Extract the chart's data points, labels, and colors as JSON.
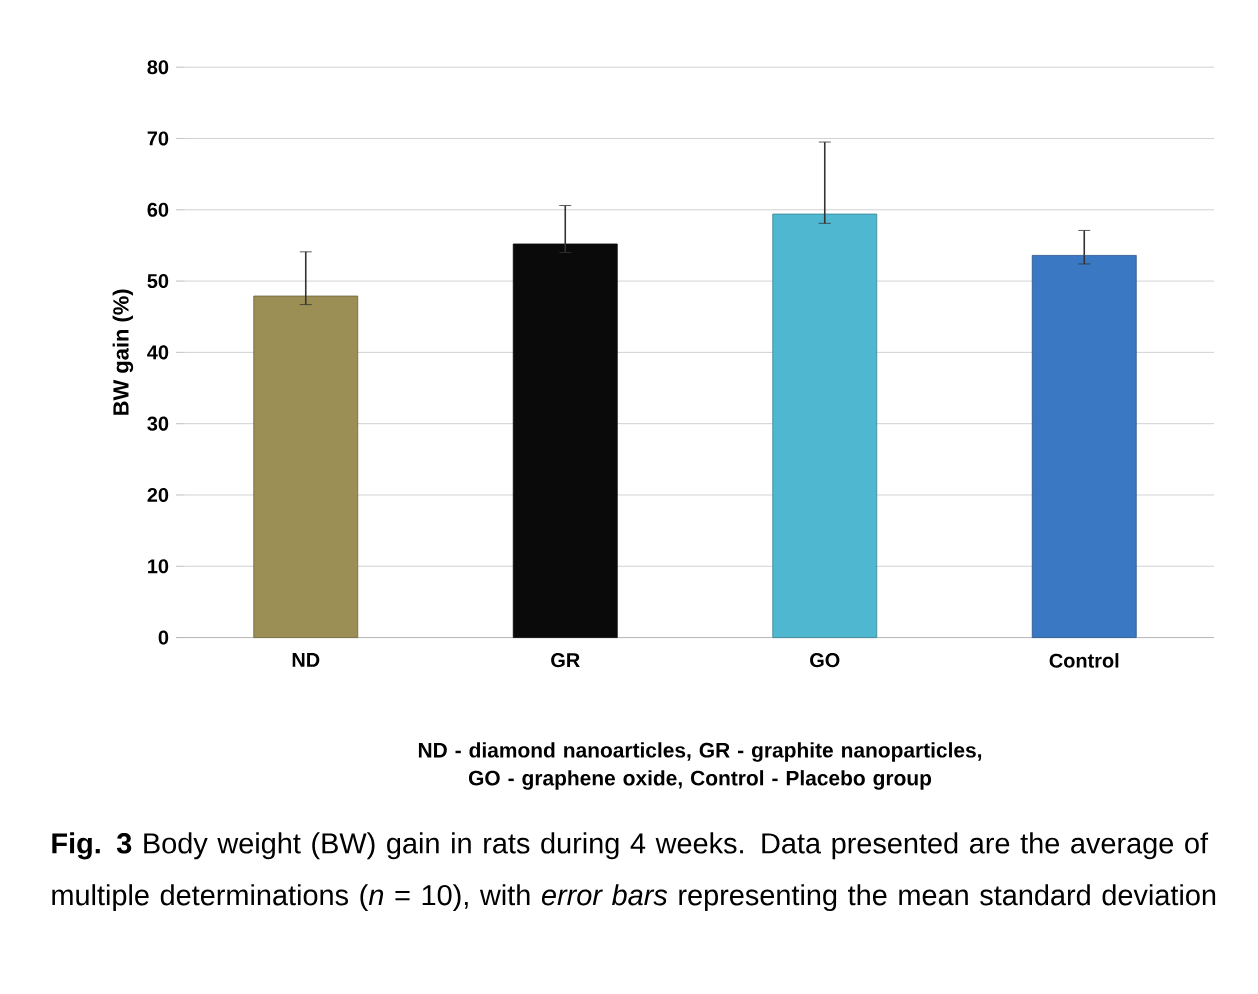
{
  "chart_data": {
    "type": "bar",
    "ylabel": "BW gain (%)",
    "categories": [
      "ND",
      "GR",
      "GO",
      "Control"
    ],
    "values": [
      47.9,
      55.2,
      59.4,
      53.6
    ],
    "colors": [
      "#9c8f55",
      "#0a0a0a",
      "#4fb8d0",
      "#3a78c4"
    ],
    "errors": [
      [
        46.7,
        54.1
      ],
      [
        54.0,
        60.6
      ],
      [
        58.1,
        69.5
      ],
      [
        52.4,
        57.1
      ]
    ],
    "ylim": [
      0,
      80
    ],
    "yticks": [
      0,
      10,
      20,
      30,
      40,
      50,
      60,
      70,
      80
    ],
    "grid": "y",
    "annotations": [
      "ND - diamond nanoarticles, GR - graphite nanoparticles, GO - graphene oxide,  Control - Placebo group",
      "**Fig. 3** Body weight (BW) gain in rats during 4 weeks. Data presented are the average of multiple determinations (*n* = 10), with *error bars* representing the mean standard deviation"
    ]
  }
}
